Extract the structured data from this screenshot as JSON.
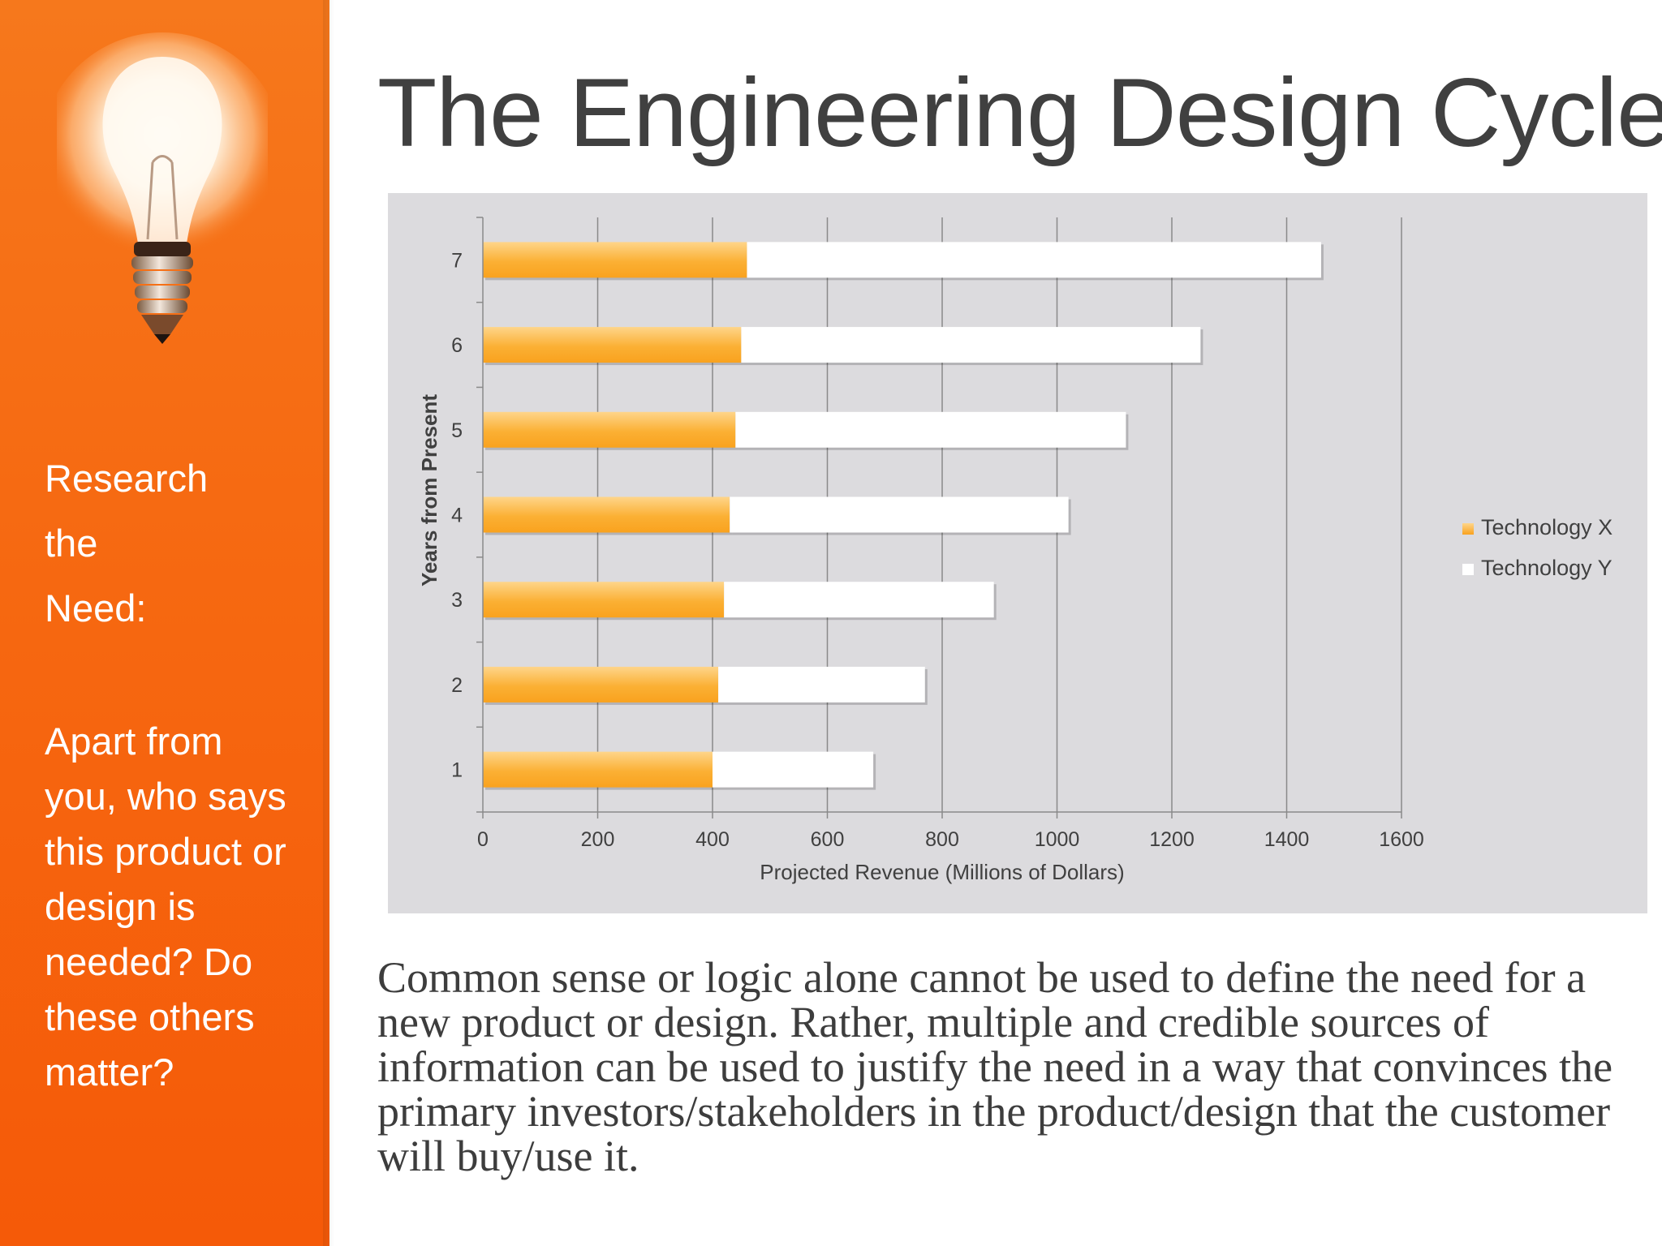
{
  "slide": {
    "title": "The Engineering Design Cycle",
    "sidebar_heading_lines": [
      "Research",
      "the",
      "Need:"
    ],
    "sidebar_question": "Apart from you, who says this product or design is needed? Do these others matter?",
    "body_text": "Common sense or logic alone cannot be used to define the need for a new product or design.  Rather, multiple and credible sources of information can be used to justify the need in a way that convinces the primary investors/stakeholders in the product/design that the customer will buy/use it.",
    "sidebar_icon": "lightbulb-icon"
  },
  "chart_data": {
    "type": "bar",
    "orientation": "horizontal",
    "stacked": true,
    "categories": [
      "1",
      "2",
      "3",
      "4",
      "5",
      "6",
      "7"
    ],
    "series": [
      {
        "name": "Technology X",
        "values": [
          400,
          410,
          420,
          430,
          440,
          450,
          460
        ],
        "color": "#fbb034"
      },
      {
        "name": "Technology Y",
        "values": [
          280,
          360,
          470,
          590,
          680,
          800,
          1000
        ],
        "color": "#ffffff"
      }
    ],
    "title": "",
    "xlabel": "Projected Revenue (Millions of Dollars)",
    "ylabel": "Years from Present",
    "xlim": [
      0,
      1600
    ],
    "xticks": [
      "0",
      "200",
      "400",
      "600",
      "800",
      "1000",
      "1200",
      "1400",
      "1600"
    ],
    "grid": "vertical",
    "legend": "right",
    "background": "#dcdbde"
  }
}
